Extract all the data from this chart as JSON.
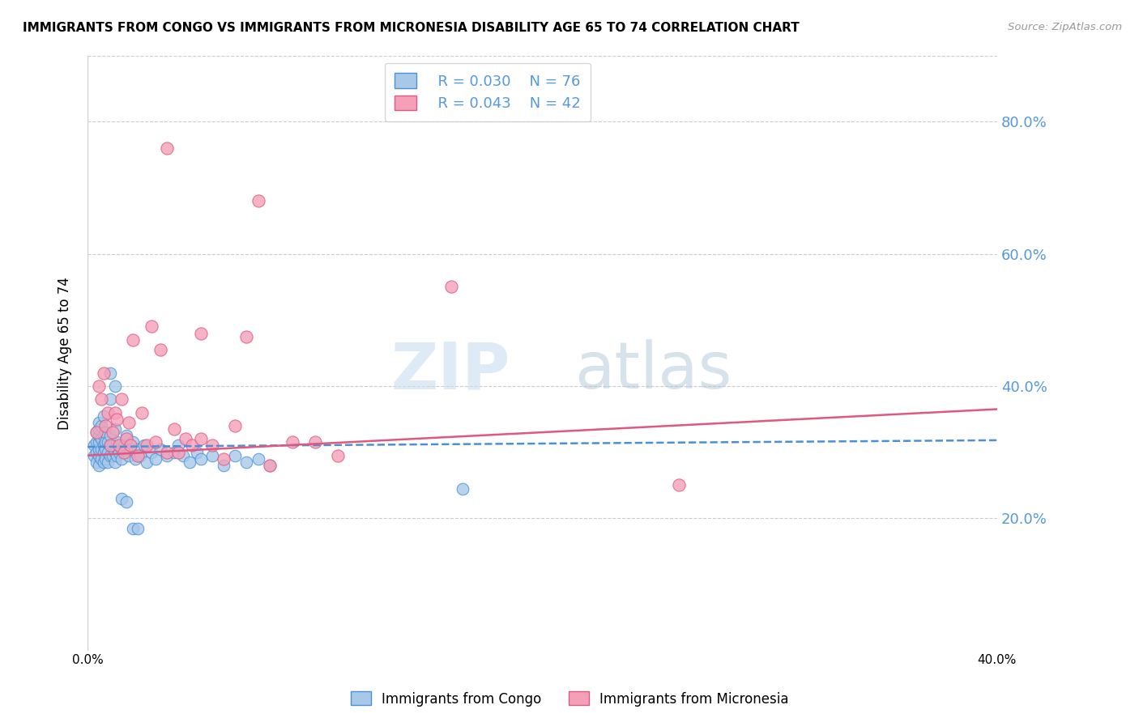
{
  "title": "IMMIGRANTS FROM CONGO VS IMMIGRANTS FROM MICRONESIA DISABILITY AGE 65 TO 74 CORRELATION CHART",
  "source": "Source: ZipAtlas.com",
  "ylabel": "Disability Age 65 to 74",
  "xlim": [
    0.0,
    0.4
  ],
  "ylim": [
    0.0,
    0.9
  ],
  "ytick_vals": [
    0.0,
    0.2,
    0.4,
    0.6,
    0.8
  ],
  "xtick_vals": [
    0.0,
    0.1,
    0.2,
    0.3,
    0.4
  ],
  "xtick_labels": [
    "0.0%",
    "",
    "",
    "",
    "40.0%"
  ],
  "right_ytick_labels": [
    "20.0%",
    "40.0%",
    "60.0%",
    "80.0%"
  ],
  "right_ytick_vals": [
    0.2,
    0.4,
    0.6,
    0.8
  ],
  "legend_R_congo": "R = 0.030",
  "legend_N_congo": "N = 76",
  "legend_R_micro": "R = 0.043",
  "legend_N_micro": "N = 42",
  "color_congo": "#a8c8e8",
  "color_micro": "#f4a0b8",
  "line_color_congo": "#4a90d9",
  "line_color_micro": "#e05880",
  "watermark_zip": "ZIP",
  "watermark_atlas": "atlas",
  "background_color": "#ffffff",
  "grid_color": "#cccccc",
  "right_axis_color": "#5599dd",
  "congo_x": [
    0.003,
    0.003,
    0.004,
    0.004,
    0.004,
    0.004,
    0.005,
    0.005,
    0.005,
    0.005,
    0.005,
    0.005,
    0.005,
    0.006,
    0.006,
    0.006,
    0.006,
    0.007,
    0.007,
    0.007,
    0.007,
    0.007,
    0.008,
    0.008,
    0.008,
    0.008,
    0.009,
    0.009,
    0.009,
    0.01,
    0.01,
    0.01,
    0.01,
    0.011,
    0.011,
    0.012,
    0.012,
    0.012,
    0.013,
    0.013,
    0.014,
    0.015,
    0.015,
    0.016,
    0.017,
    0.018,
    0.019,
    0.02,
    0.021,
    0.022,
    0.023,
    0.025,
    0.026,
    0.028,
    0.03,
    0.032,
    0.035,
    0.038,
    0.04,
    0.042,
    0.045,
    0.048,
    0.05,
    0.055,
    0.06,
    0.065,
    0.07,
    0.075,
    0.08,
    0.01,
    0.012,
    0.015,
    0.017,
    0.02,
    0.022,
    0.165
  ],
  "congo_y": [
    0.295,
    0.31,
    0.285,
    0.3,
    0.315,
    0.33,
    0.28,
    0.295,
    0.305,
    0.315,
    0.325,
    0.335,
    0.345,
    0.29,
    0.305,
    0.32,
    0.34,
    0.285,
    0.3,
    0.31,
    0.325,
    0.355,
    0.29,
    0.305,
    0.315,
    0.33,
    0.285,
    0.3,
    0.315,
    0.295,
    0.31,
    0.325,
    0.38,
    0.295,
    0.31,
    0.285,
    0.3,
    0.335,
    0.295,
    0.315,
    0.3,
    0.29,
    0.305,
    0.31,
    0.325,
    0.295,
    0.305,
    0.315,
    0.29,
    0.305,
    0.295,
    0.31,
    0.285,
    0.3,
    0.29,
    0.305,
    0.295,
    0.3,
    0.31,
    0.295,
    0.285,
    0.3,
    0.29,
    0.295,
    0.28,
    0.295,
    0.285,
    0.29,
    0.28,
    0.42,
    0.4,
    0.23,
    0.225,
    0.185,
    0.185,
    0.245
  ],
  "micro_x": [
    0.004,
    0.005,
    0.006,
    0.007,
    0.008,
    0.009,
    0.01,
    0.011,
    0.012,
    0.013,
    0.014,
    0.015,
    0.016,
    0.017,
    0.018,
    0.019,
    0.02,
    0.022,
    0.024,
    0.026,
    0.028,
    0.03,
    0.032,
    0.035,
    0.038,
    0.04,
    0.043,
    0.046,
    0.05,
    0.055,
    0.06,
    0.065,
    0.07,
    0.08,
    0.09,
    0.1,
    0.11,
    0.16,
    0.26,
    0.05,
    0.075,
    0.035
  ],
  "micro_y": [
    0.33,
    0.4,
    0.38,
    0.42,
    0.34,
    0.36,
    0.31,
    0.33,
    0.36,
    0.35,
    0.31,
    0.38,
    0.3,
    0.32,
    0.345,
    0.31,
    0.47,
    0.295,
    0.36,
    0.31,
    0.49,
    0.315,
    0.455,
    0.3,
    0.335,
    0.3,
    0.32,
    0.31,
    0.48,
    0.31,
    0.29,
    0.34,
    0.475,
    0.28,
    0.315,
    0.315,
    0.295,
    0.55,
    0.25,
    0.32,
    0.68,
    0.76
  ],
  "congo_line_x": [
    0.0,
    0.4
  ],
  "congo_line_y": [
    0.308,
    0.318
  ],
  "micro_line_x": [
    0.0,
    0.4
  ],
  "micro_line_y": [
    0.295,
    0.365
  ]
}
